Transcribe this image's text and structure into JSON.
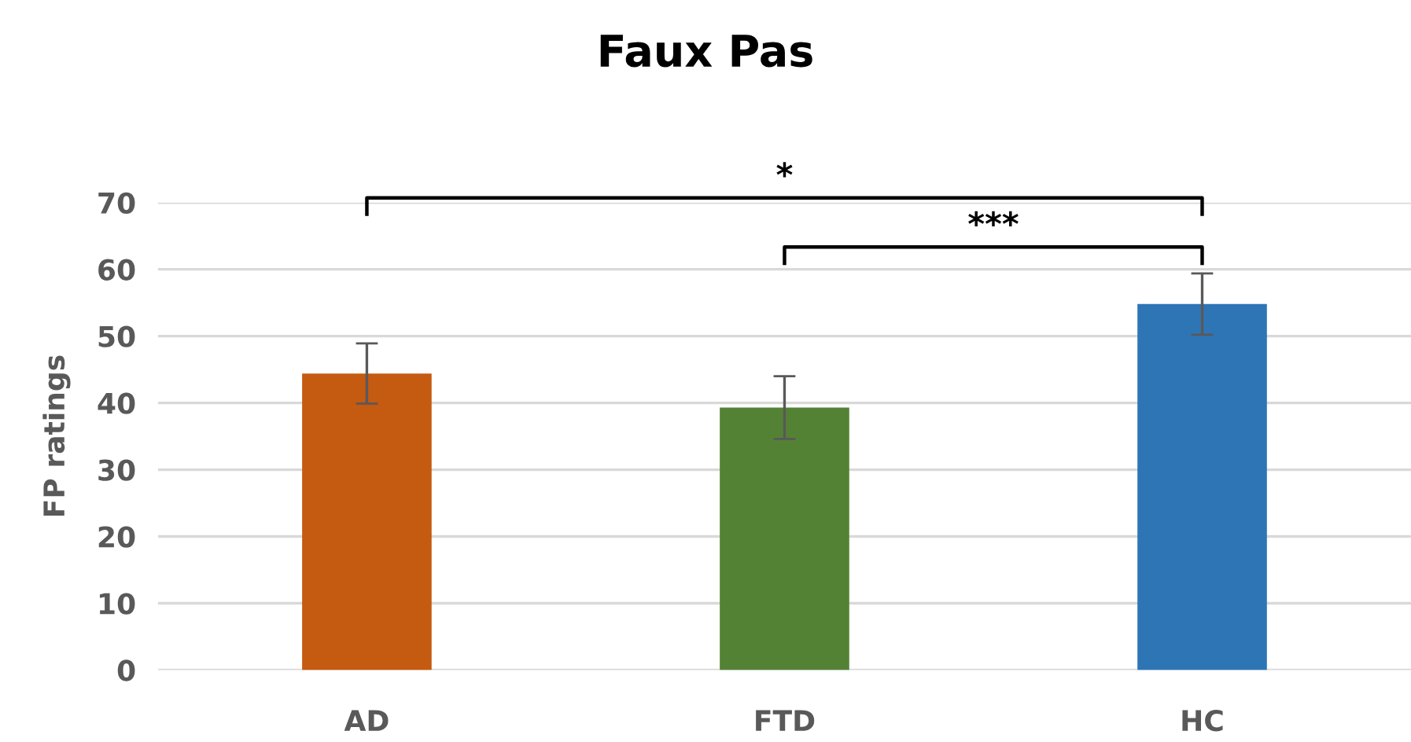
{
  "chart_data": {
    "type": "bar",
    "title": "Faux Pas",
    "ylabel": "FP ratings",
    "categories": [
      "AD",
      "FTD",
      "HC"
    ],
    "values": [
      44.4,
      39.3,
      54.8
    ],
    "colors": [
      "#c55a11",
      "#548235",
      "#2e75b6"
    ],
    "errors": [
      4.5,
      4.7,
      4.6
    ],
    "ylim": [
      0,
      70
    ],
    "yticks": [
      0,
      10,
      20,
      30,
      40,
      50,
      60,
      70
    ],
    "grid": "y",
    "annotations": [
      "*",
      "***"
    ]
  }
}
